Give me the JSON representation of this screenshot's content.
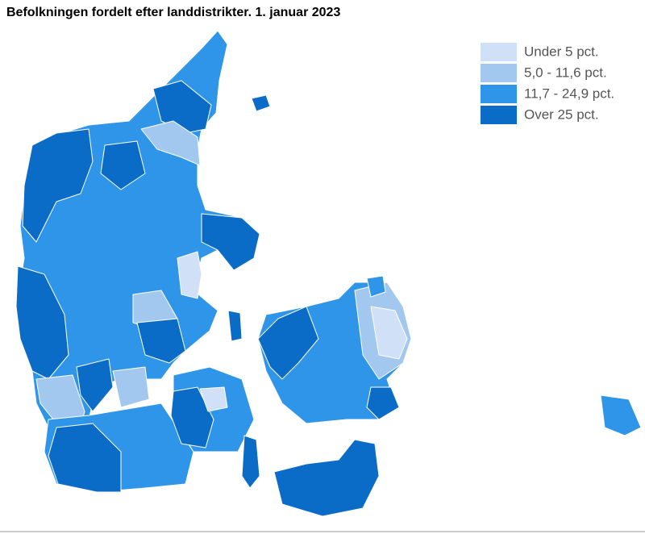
{
  "title": "Befolkningen fordelt efter landdistrikter. 1. januar 2023",
  "legend": [
    {
      "label": "Under 5 pct.",
      "color": "#cfe0f7"
    },
    {
      "label": "5,0 - 11,6 pct.",
      "color": "#a3c8f0"
    },
    {
      "label": "11,7 - 24,9 pct.",
      "color": "#2f95e8"
    },
    {
      "label": "Over 25 pct.",
      "color": "#0b6cc8"
    }
  ]
}
